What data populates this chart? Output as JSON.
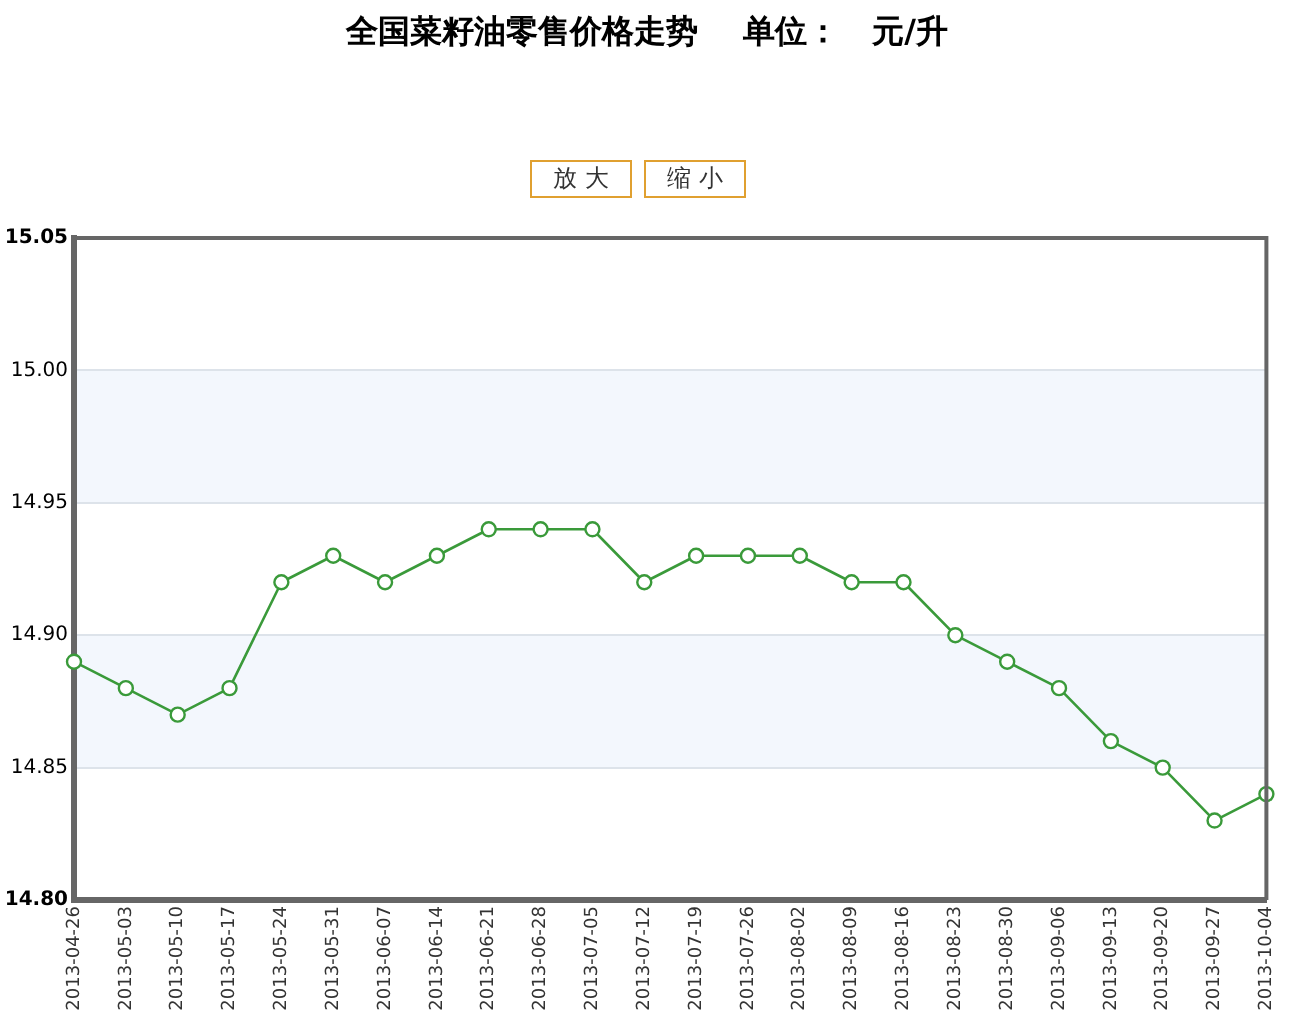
{
  "chart_data": {
    "type": "line",
    "title": "全国菜籽油零售价格走势    单位：   元/升",
    "annotations": [
      "放 大",
      "缩 小"
    ],
    "categories": [
      "2013-04-26",
      "2013-05-03",
      "2013-05-10",
      "2013-05-17",
      "2013-05-24",
      "2013-05-31",
      "2013-06-07",
      "2013-06-14",
      "2013-06-21",
      "2013-06-28",
      "2013-07-05",
      "2013-07-12",
      "2013-07-19",
      "2013-07-26",
      "2013-08-02",
      "2013-08-09",
      "2013-08-16",
      "2013-08-23",
      "2013-08-30",
      "2013-09-06",
      "2013-09-13",
      "2013-09-20",
      "2013-09-27",
      "2013-10-04"
    ],
    "values": [
      14.89,
      14.88,
      14.87,
      14.88,
      14.92,
      14.93,
      14.92,
      14.93,
      14.94,
      14.94,
      14.94,
      14.92,
      14.93,
      14.93,
      14.93,
      14.92,
      14.92,
      14.9,
      14.89,
      14.88,
      14.86,
      14.85,
      14.83,
      14.84
    ],
    "color": "#3a9a3a",
    "marker": "circle",
    "line_style": "solid",
    "ylim": [
      14.8,
      15.05
    ],
    "yticks": [
      {
        "value": 14.8,
        "label": "14.80"
      },
      14.85,
      {
        "value": 14.9,
        "label": "14.90"
      },
      14.95,
      {
        "value": 15,
        "label": "15.00"
      },
      15.05
    ],
    "grid": "y",
    "bands": [
      {
        "axis": "y",
        "from": 14.85,
        "to": 14.9,
        "color": "#f3f7fd"
      },
      {
        "axis": "y",
        "from": 14.95,
        "to": 15.0,
        "color": "#f3f7fd"
      }
    ]
  }
}
